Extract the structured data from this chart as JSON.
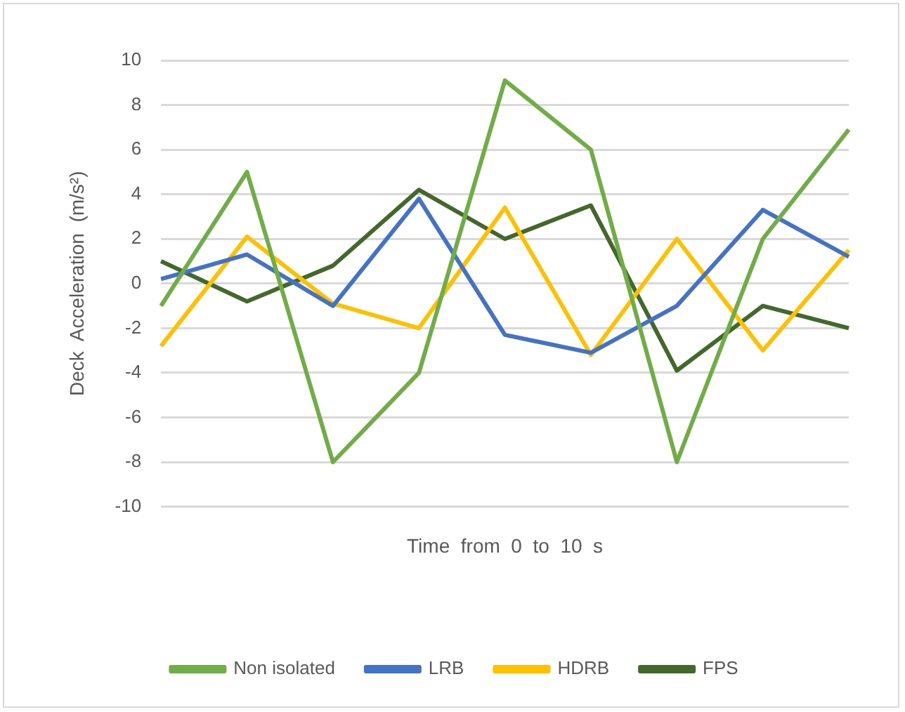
{
  "chart_data": {
    "type": "line",
    "xlabel": "Time  from  0  to  10  s",
    "ylabel": "Deck  Acceleration  (m/s²)",
    "categories": [
      null,
      null,
      null,
      null,
      null,
      null,
      null,
      null,
      null
    ],
    "series": [
      {
        "name": "Non isolated",
        "color": "#70ad47",
        "values": [
          -1,
          5,
          -8,
          -4,
          9.1,
          6,
          -8,
          2,
          6.9
        ]
      },
      {
        "name": "LRB",
        "color": "#4472c4",
        "values": [
          0.2,
          1.3,
          -1,
          3.8,
          -2.3,
          -3.1,
          -1,
          3.3,
          1.2
        ]
      },
      {
        "name": "HDRB",
        "color": "#ffc000",
        "values": [
          -2.8,
          2.1,
          -0.9,
          -2,
          3.4,
          -3.2,
          2,
          -3,
          1.5
        ]
      },
      {
        "name": "FPS",
        "color": "#43682b",
        "values": [
          1,
          -0.8,
          0.8,
          4.2,
          2,
          3.5,
          -3.9,
          -1,
          -2
        ]
      }
    ],
    "ylim": [
      -10,
      10
    ],
    "yticks": [
      -10,
      -8,
      -6,
      -4,
      -2,
      0,
      2,
      4,
      6,
      8,
      10
    ],
    "grid": "y",
    "legend": "bottom",
    "marker": "none"
  }
}
